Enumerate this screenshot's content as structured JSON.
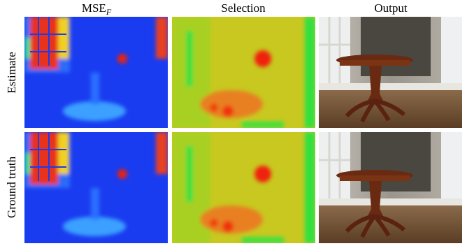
{
  "columns": [
    {
      "text": "MSE",
      "subscript": "F"
    },
    {
      "text": "Selection"
    },
    {
      "text": "Output"
    }
  ],
  "rows": [
    "Estimate",
    "Ground truth"
  ]
}
